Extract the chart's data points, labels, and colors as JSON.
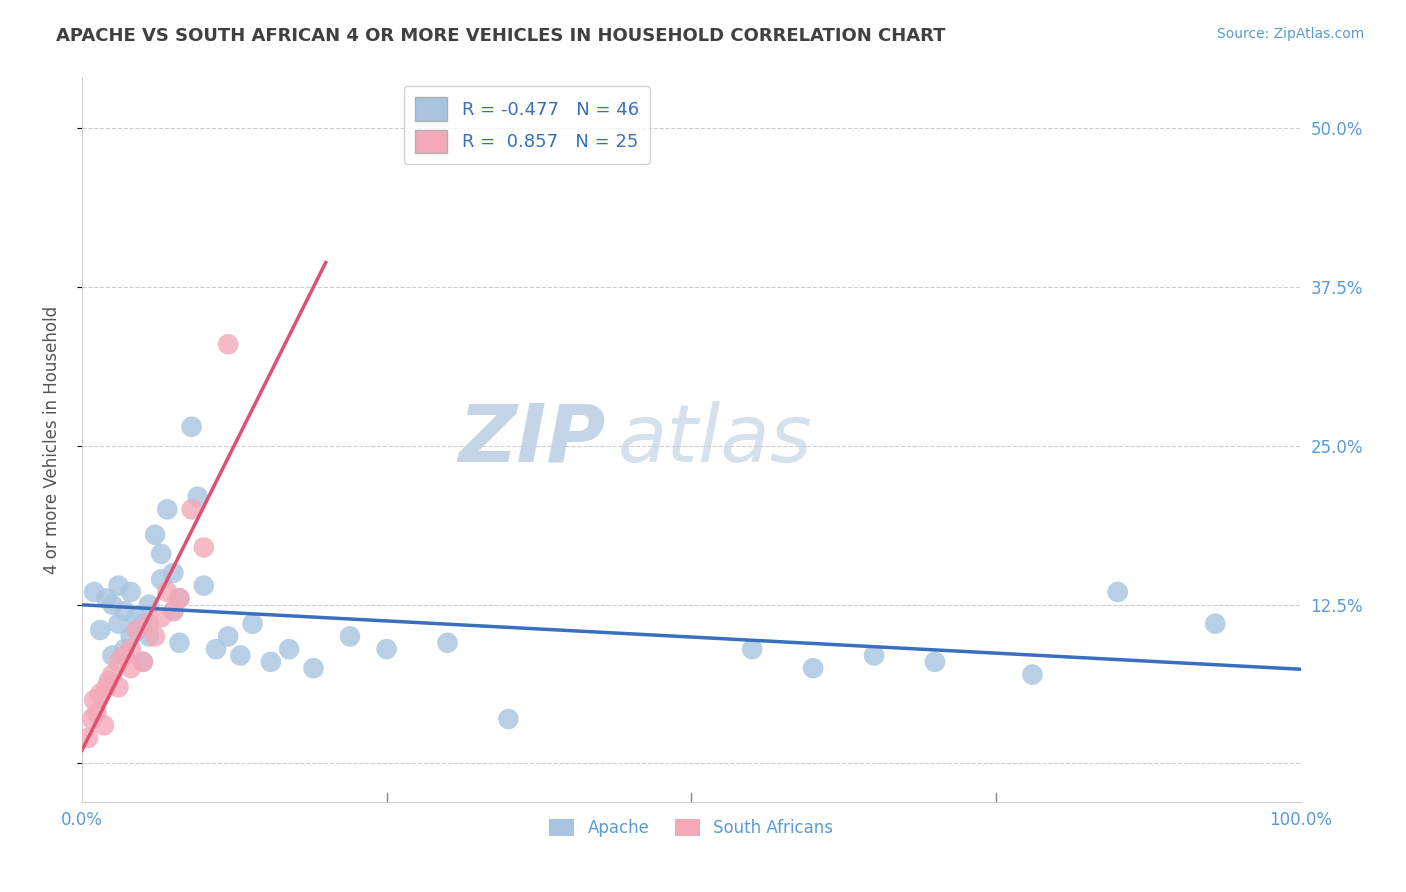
{
  "title": "APACHE VS SOUTH AFRICAN 4 OR MORE VEHICLES IN HOUSEHOLD CORRELATION CHART",
  "source": "Source: ZipAtlas.com",
  "ylabel": "4 or more Vehicles in Household",
  "xlim": [
    0,
    100
  ],
  "ylim": [
    -3,
    54
  ],
  "yticks": [
    0,
    12.5,
    25.0,
    37.5,
    50.0
  ],
  "ytick_labels": [
    "",
    "12.5%",
    "25.0%",
    "37.5%",
    "50.0%"
  ],
  "xticks": [
    0,
    25,
    50,
    75,
    100
  ],
  "xtick_labels": [
    "0.0%",
    "",
    "",
    "",
    "100.0%"
  ],
  "legend_apache_R": "-0.477",
  "legend_apache_N": "46",
  "legend_sa_R": "0.857",
  "legend_sa_N": "25",
  "apache_color": "#a8c4e0",
  "sa_color": "#f4a8b8",
  "apache_line_color": "#3a6fbe",
  "sa_line_color": "#e05070",
  "watermark_ZIP": "ZIP",
  "watermark_atlas": "atlas",
  "background_color": "#ffffff",
  "apache_x": [
    1.0,
    1.5,
    2.0,
    2.5,
    2.5,
    3.0,
    3.0,
    3.5,
    3.5,
    4.0,
    4.0,
    4.5,
    4.5,
    5.0,
    5.0,
    5.5,
    5.5,
    6.0,
    6.5,
    6.5,
    7.0,
    7.5,
    7.5,
    8.0,
    8.0,
    9.0,
    9.5,
    10.0,
    11.0,
    12.0,
    13.0,
    14.0,
    15.5,
    17.0,
    19.0,
    22.0,
    25.0,
    30.0,
    35.0,
    55.0,
    60.0,
    65.0,
    70.0,
    78.0,
    85.0,
    93.0
  ],
  "apache_y": [
    13.5,
    10.5,
    13.0,
    8.5,
    12.5,
    11.0,
    14.0,
    9.0,
    12.0,
    10.0,
    13.5,
    11.5,
    10.5,
    8.0,
    11.0,
    12.5,
    10.0,
    18.0,
    14.5,
    16.5,
    20.0,
    15.0,
    12.0,
    9.5,
    13.0,
    26.5,
    21.0,
    14.0,
    9.0,
    10.0,
    8.5,
    11.0,
    8.0,
    9.0,
    7.5,
    10.0,
    9.0,
    9.5,
    3.5,
    9.0,
    7.5,
    8.5,
    8.0,
    7.0,
    13.5,
    11.0
  ],
  "sa_x": [
    0.5,
    0.8,
    1.0,
    1.2,
    1.5,
    1.8,
    2.0,
    2.2,
    2.5,
    3.0,
    3.0,
    3.5,
    4.0,
    4.0,
    4.5,
    5.0,
    5.5,
    6.0,
    6.5,
    7.0,
    7.5,
    8.0,
    9.0,
    10.0,
    12.0
  ],
  "sa_y": [
    2.0,
    3.5,
    5.0,
    4.0,
    5.5,
    3.0,
    6.0,
    6.5,
    7.0,
    6.0,
    8.0,
    8.5,
    7.5,
    9.0,
    10.5,
    8.0,
    11.0,
    10.0,
    11.5,
    13.5,
    12.0,
    13.0,
    20.0,
    17.0,
    33.0
  ]
}
